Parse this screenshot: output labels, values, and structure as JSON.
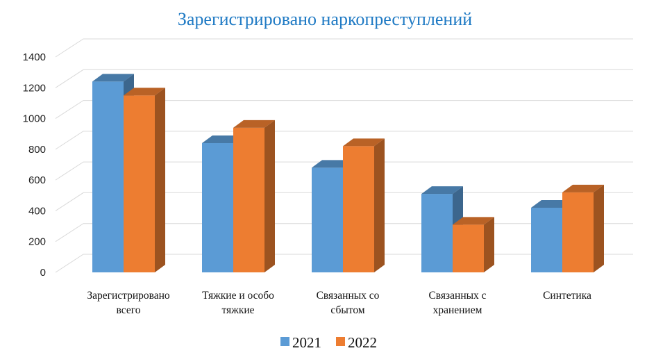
{
  "chart_data": {
    "type": "bar",
    "title": "Зарегистрировано наркопреступлений",
    "categories": [
      [
        "Зарегистрировано",
        "всего"
      ],
      [
        "Тяжкие и особо",
        "тяжкие"
      ],
      [
        "Связанных со",
        "сбытом"
      ],
      [
        "Связанных с",
        "хранением"
      ],
      [
        "Синтетика"
      ]
    ],
    "series": [
      {
        "name": "2021",
        "color": "#5b9bd5",
        "values": [
          1240,
          840,
          680,
          510,
          420
        ]
      },
      {
        "name": "2022",
        "color": "#ed7d31",
        "values": [
          1150,
          940,
          820,
          310,
          520
        ]
      }
    ],
    "ylim": [
      0,
      1400
    ],
    "yticks": [
      0,
      200,
      400,
      600,
      800,
      1000,
      1200,
      1400
    ],
    "grid": true,
    "legend_position": "bottom"
  }
}
